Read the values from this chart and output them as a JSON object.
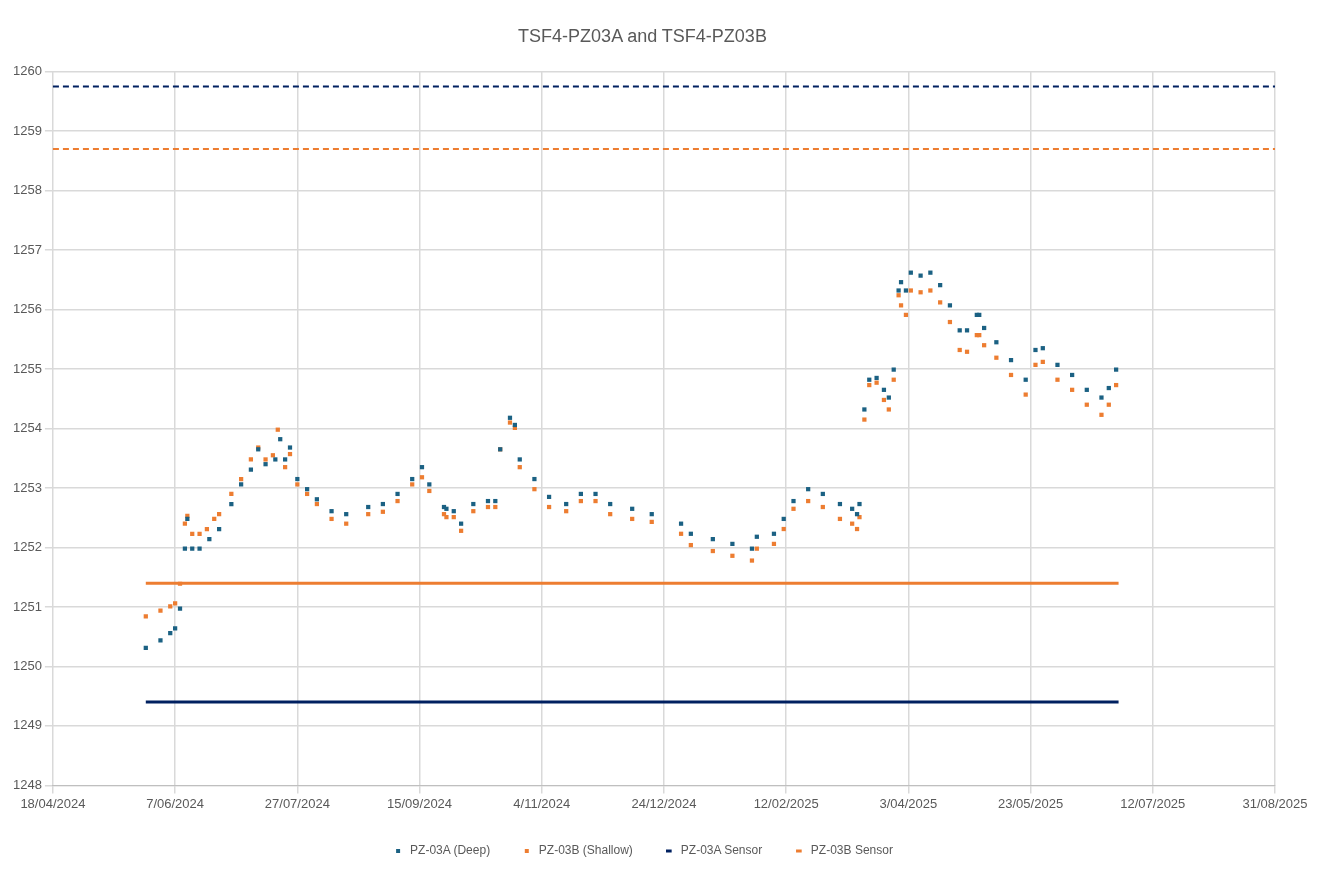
{
  "chart_data": {
    "type": "scatter",
    "title": "TSF4-PZ03A and TSF4-PZ03B",
    "xlim": [
      "2024-04-18",
      "2025-08-31"
    ],
    "xticks": [
      {
        "value": "2024-04-18",
        "label": "18/04/2024"
      },
      {
        "value": "2024-06-07",
        "label": "7/06/2024"
      },
      {
        "value": "2024-07-27",
        "label": "27/07/2024"
      },
      {
        "value": "2024-09-15",
        "label": "15/09/2024"
      },
      {
        "value": "2024-11-04",
        "label": "4/11/2024"
      },
      {
        "value": "2024-12-24",
        "label": "24/12/2024"
      },
      {
        "value": "2025-02-12",
        "label": "12/02/2025"
      },
      {
        "value": "2025-04-03",
        "label": "3/04/2025"
      },
      {
        "value": "2025-05-23",
        "label": "23/05/2025"
      },
      {
        "value": "2025-07-12",
        "label": "12/07/2025"
      },
      {
        "value": "2025-08-31",
        "label": "31/08/2025"
      }
    ],
    "ylim": [
      1248,
      1260
    ],
    "yticks": [
      1248,
      1249,
      1250,
      1251,
      1252,
      1253,
      1254,
      1255,
      1256,
      1257,
      1258,
      1259,
      1260
    ],
    "grid": true,
    "legend": "bottom",
    "marker": "square",
    "series": [
      {
        "name": "PZ-03A (Deep)",
        "color": "#1b6183",
        "x": [
          "2024-05-26",
          "2024-06-01",
          "2024-06-05",
          "2024-06-07",
          "2024-06-09",
          "2024-06-11",
          "2024-06-12",
          "2024-06-14",
          "2024-06-17",
          "2024-06-21",
          "2024-06-25",
          "2024-06-30",
          "2024-07-04",
          "2024-07-08",
          "2024-07-11",
          "2024-07-14",
          "2024-07-18",
          "2024-07-20",
          "2024-07-22",
          "2024-07-24",
          "2024-07-27",
          "2024-07-31",
          "2024-08-04",
          "2024-08-10",
          "2024-08-16",
          "2024-08-25",
          "2024-08-31",
          "2024-09-06",
          "2024-09-12",
          "2024-09-16",
          "2024-09-19",
          "2024-09-25",
          "2024-09-26",
          "2024-09-29",
          "2024-10-02",
          "2024-10-07",
          "2024-10-13",
          "2024-10-16",
          "2024-10-18",
          "2024-10-22",
          "2024-10-24",
          "2024-10-26",
          "2024-11-01",
          "2024-11-07",
          "2024-11-14",
          "2024-11-20",
          "2024-11-26",
          "2024-12-02",
          "2024-12-11",
          "2024-12-19",
          "2024-12-31",
          "2025-01-04",
          "2025-01-13",
          "2025-01-21",
          "2025-01-29",
          "2025-01-31",
          "2025-02-07",
          "2025-02-11",
          "2025-02-15",
          "2025-02-21",
          "2025-02-27",
          "2025-03-06",
          "2025-03-11",
          "2025-03-13",
          "2025-03-14",
          "2025-03-16",
          "2025-03-18",
          "2025-03-21",
          "2025-03-24",
          "2025-03-26",
          "2025-03-28",
          "2025-03-30",
          "2025-03-31",
          "2025-04-02",
          "2025-04-04",
          "2025-04-08",
          "2025-04-12",
          "2025-04-16",
          "2025-04-20",
          "2025-04-24",
          "2025-04-27",
          "2025-05-01",
          "2025-05-02",
          "2025-05-04",
          "2025-05-09",
          "2025-05-15",
          "2025-05-21",
          "2025-05-25",
          "2025-05-28",
          "2025-06-03",
          "2025-06-09",
          "2025-06-15",
          "2025-06-21",
          "2025-06-24",
          "2025-06-27"
        ],
        "values": [
          1250.31,
          1250.44,
          1250.56,
          1250.64,
          1250.97,
          1251.98,
          1252.48,
          1251.98,
          1251.98,
          1252.14,
          1252.31,
          1252.73,
          1253.06,
          1253.31,
          1253.65,
          1253.4,
          1253.48,
          1253.82,
          1253.48,
          1253.68,
          1253.15,
          1252.98,
          1252.81,
          1252.61,
          1252.56,
          1252.68,
          1252.73,
          1252.9,
          1253.15,
          1253.35,
          1253.06,
          1252.68,
          1252.65,
          1252.61,
          1252.4,
          1252.73,
          1252.78,
          1252.78,
          1253.65,
          1254.18,
          1254.06,
          1253.48,
          1253.15,
          1252.85,
          1252.73,
          1252.9,
          1252.9,
          1252.73,
          1252.65,
          1252.56,
          1252.4,
          1252.23,
          1252.14,
          1252.06,
          1251.98,
          1252.18,
          1252.23,
          1252.48,
          1252.78,
          1252.98,
          1252.9,
          1252.73,
          1252.65,
          1252.56,
          1252.73,
          1254.32,
          1254.82,
          1254.85,
          1254.65,
          1254.52,
          1254.99,
          1256.32,
          1256.46,
          1256.32,
          1256.62,
          1256.57,
          1256.62,
          1256.41,
          1256.07,
          1255.65,
          1255.65,
          1255.91,
          1255.91,
          1255.69,
          1255.45,
          1255.15,
          1254.82,
          1255.32,
          1255.35,
          1255.07,
          1254.9,
          1254.65,
          1254.52,
          1254.68,
          1254.99
        ]
      },
      {
        "name": "PZ-03B (Shallow)",
        "color": "#ed7d31",
        "x": [
          "2024-05-26",
          "2024-06-01",
          "2024-06-05",
          "2024-06-07",
          "2024-06-09",
          "2024-06-11",
          "2024-06-12",
          "2024-06-14",
          "2024-06-17",
          "2024-06-20",
          "2024-06-23",
          "2024-06-25",
          "2024-06-30",
          "2024-07-04",
          "2024-07-08",
          "2024-07-11",
          "2024-07-14",
          "2024-07-17",
          "2024-07-19",
          "2024-07-22",
          "2024-07-24",
          "2024-07-27",
          "2024-07-31",
          "2024-08-04",
          "2024-08-10",
          "2024-08-16",
          "2024-08-25",
          "2024-08-31",
          "2024-09-06",
          "2024-09-12",
          "2024-09-16",
          "2024-09-19",
          "2024-09-25",
          "2024-09-26",
          "2024-09-29",
          "2024-10-02",
          "2024-10-07",
          "2024-10-13",
          "2024-10-16",
          "2024-10-18",
          "2024-10-22",
          "2024-10-24",
          "2024-10-26",
          "2024-11-01",
          "2024-11-07",
          "2024-11-14",
          "2024-11-20",
          "2024-11-26",
          "2024-12-02",
          "2024-12-11",
          "2024-12-19",
          "2024-12-31",
          "2025-01-04",
          "2025-01-13",
          "2025-01-21",
          "2025-01-29",
          "2025-01-31",
          "2025-02-07",
          "2025-02-11",
          "2025-02-15",
          "2025-02-21",
          "2025-02-27",
          "2025-03-06",
          "2025-03-11",
          "2025-03-13",
          "2025-03-14",
          "2025-03-16",
          "2025-03-18",
          "2025-03-21",
          "2025-03-24",
          "2025-03-26",
          "2025-03-28",
          "2025-03-30",
          "2025-03-31",
          "2025-04-02",
          "2025-04-04",
          "2025-04-08",
          "2025-04-12",
          "2025-04-16",
          "2025-04-20",
          "2025-04-24",
          "2025-04-27",
          "2025-05-01",
          "2025-05-02",
          "2025-05-04",
          "2025-05-09",
          "2025-05-15",
          "2025-05-21",
          "2025-05-25",
          "2025-05-28",
          "2025-06-03",
          "2025-06-09",
          "2025-06-15",
          "2025-06-21",
          "2025-06-24",
          "2025-06-27"
        ],
        "values": [
          1250.84,
          1250.94,
          1251.01,
          1251.06,
          1251.39,
          1252.4,
          1252.53,
          1252.23,
          1252.23,
          1252.31,
          1252.48,
          1252.56,
          1252.9,
          1253.15,
          1253.48,
          1253.68,
          1253.48,
          1253.55,
          1253.98,
          1253.35,
          1253.57,
          1253.06,
          1252.9,
          1252.73,
          1252.48,
          1252.4,
          1252.56,
          1252.6,
          1252.78,
          1253.06,
          1253.18,
          1252.95,
          1252.56,
          1252.51,
          1252.51,
          1252.28,
          1252.61,
          1252.68,
          1252.68,
          1253.65,
          1254.1,
          1254.01,
          1253.35,
          1252.98,
          1252.68,
          1252.61,
          1252.78,
          1252.78,
          1252.56,
          1252.48,
          1252.43,
          1252.23,
          1252.04,
          1251.94,
          1251.86,
          1251.78,
          1251.98,
          1252.06,
          1252.31,
          1252.65,
          1252.78,
          1252.68,
          1252.48,
          1252.4,
          1252.31,
          1252.51,
          1254.15,
          1254.73,
          1254.77,
          1254.48,
          1254.32,
          1254.82,
          1256.24,
          1256.07,
          1255.91,
          1256.32,
          1256.29,
          1256.32,
          1256.12,
          1255.79,
          1255.32,
          1255.29,
          1255.57,
          1255.57,
          1255.4,
          1255.19,
          1254.9,
          1254.57,
          1255.07,
          1255.12,
          1254.82,
          1254.65,
          1254.4,
          1254.23,
          1254.4,
          1254.73
        ]
      },
      {
        "name": "PZ-03A Sensor",
        "type": "line",
        "marker": "none",
        "color": "#002060",
        "x": [
          "2024-05-26",
          "2025-06-28"
        ],
        "values": [
          1249.4,
          1249.4
        ]
      },
      {
        "name": "PZ-03B Sensor",
        "type": "line",
        "marker": "none",
        "color": "#ed7d31",
        "x": [
          "2024-05-26",
          "2025-06-28"
        ],
        "values": [
          1251.4,
          1251.4
        ]
      }
    ],
    "ref_lines": [
      {
        "axis": "y",
        "value": 1259.75,
        "color": "#002060",
        "line_style": "dashed"
      },
      {
        "axis": "y",
        "value": 1258.7,
        "color": "#ed7d31",
        "line_style": "dashed"
      }
    ]
  }
}
